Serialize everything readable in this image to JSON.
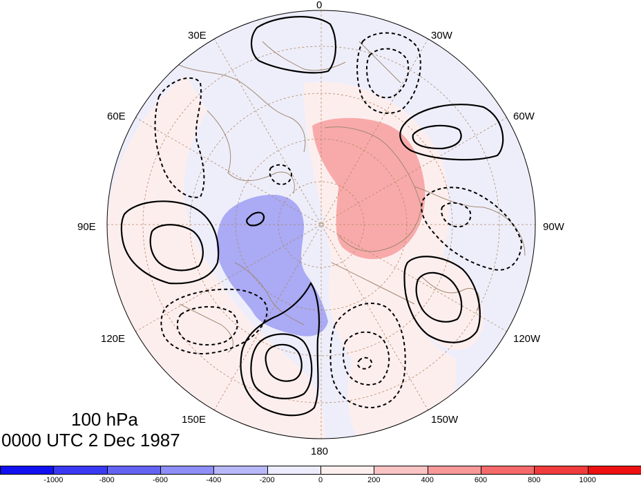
{
  "map": {
    "projection": "north-polar-stereographic",
    "longitude_labels": {
      "top": "0",
      "upper_left": "30E",
      "upper_right": "30W",
      "left_upper": "60E",
      "right_upper": "60W",
      "left": "90E",
      "right": "90W",
      "left_lower": "120E",
      "right_lower": "120W",
      "lower_left": "150E",
      "lower_right": "150W",
      "bottom": "180"
    },
    "shaded_field_colors": {
      "neg_1000": "#1010f0",
      "neg_800": "#3a3af2",
      "neg_600": "#6464f3",
      "neg_400": "#8e8ef6",
      "neg_200": "#b8b8f9",
      "neg_0": "#ececfc",
      "pos_0": "#fdeeee",
      "pos_200": "#fbc4c4",
      "pos_400": "#f89898",
      "pos_600": "#f46a6a",
      "pos_800": "#f03c3c",
      "pos_1000": "#ee1010"
    },
    "coastline_color": "#a08870",
    "grid_color": "#b08860"
  },
  "caption": {
    "level": "100 hPa",
    "time": "0000 UTC 2 Dec 1987"
  },
  "colorbar": {
    "labels": [
      "-1000",
      "-800",
      "-600",
      "-400",
      "-200",
      "0",
      "200",
      "400",
      "600",
      "800",
      "1000"
    ],
    "colors": [
      "#1010f0",
      "#3a3af2",
      "#6464f3",
      "#8e8ef6",
      "#b8b8f9",
      "#ececfc",
      "#fdeeee",
      "#fbc4c4",
      "#f89898",
      "#f46a6a",
      "#f03c3c",
      "#ee1010"
    ]
  }
}
